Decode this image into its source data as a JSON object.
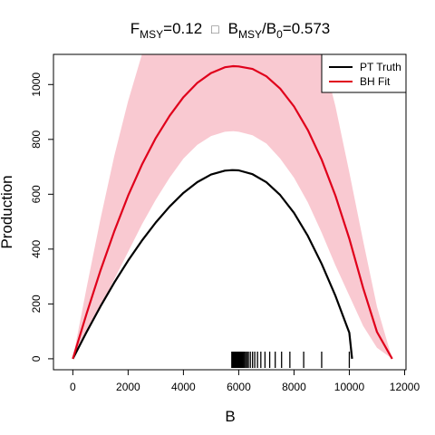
{
  "chart_data": {
    "type": "line",
    "title_parts": {
      "f_main": "F",
      "f_sub": "MSY",
      "f_value": "=0.12",
      "separator": "□",
      "b_main": "B",
      "b_sub": "MSY",
      "slash": "/",
      "b0_main": "B",
      "b0_sub": "0",
      "b_value": "=0.573"
    },
    "xlabel": "B",
    "ylabel": "Production",
    "xlim": [
      -700,
      12050
    ],
    "ylim": [
      -40,
      1110
    ],
    "x_ticks": [
      0,
      2000,
      4000,
      6000,
      8000,
      10000,
      12000
    ],
    "x_tick_labels": [
      "0",
      "2000",
      "4000",
      "6000",
      "8000",
      "10000",
      "12000"
    ],
    "y_ticks": [
      0,
      200,
      400,
      600,
      800,
      1000
    ],
    "y_tick_labels": [
      "0",
      "200",
      "400",
      "600",
      "800",
      "1000"
    ],
    "legend": {
      "position": "top-right",
      "entries": [
        {
          "label": "PT Truth",
          "color": "#000000"
        },
        {
          "label": "BH Fit",
          "color": "#e0001b"
        }
      ]
    },
    "series": [
      {
        "name": "PT Truth",
        "color": "#000000",
        "x": [
          0,
          500,
          1000,
          1500,
          2000,
          2500,
          3000,
          3500,
          4000,
          4500,
          5000,
          5500,
          5780,
          6000,
          6500,
          7000,
          7500,
          8000,
          8500,
          9000,
          9500,
          10000,
          10100
        ],
        "y": [
          0,
          98,
          191,
          278,
          358,
          431,
          497,
          555,
          605,
          644,
          672,
          686,
          688,
          687,
          673,
          644,
          597,
          532,
          448,
          346,
          229,
          95,
          0
        ]
      },
      {
        "name": "BH Fit",
        "color": "#e0001b",
        "x": [
          0,
          500,
          1000,
          1500,
          2000,
          2500,
          3000,
          3500,
          4000,
          4500,
          5000,
          5500,
          5800,
          6000,
          6500,
          7000,
          7500,
          8000,
          8500,
          9000,
          9500,
          10000,
          10500,
          11000,
          11550
        ],
        "y": [
          0,
          165,
          322,
          465,
          595,
          708,
          805,
          886,
          954,
          1006,
          1042,
          1063,
          1067,
          1066,
          1057,
          1030,
          985,
          920,
          834,
          726,
          594,
          438,
          258,
          98,
          0
        ]
      }
    ],
    "confidence_band": {
      "color": "#f9c9d1",
      "x": [
        0,
        500,
        1000,
        1500,
        2000,
        2500,
        3000,
        3500,
        4000,
        4500,
        5000,
        5500,
        5800,
        6000,
        6500,
        7000,
        7500,
        8000,
        8500,
        9000,
        9500,
        10000,
        10500,
        11000,
        11550
      ],
      "lower": [
        0,
        95,
        190,
        290,
        390,
        490,
        580,
        660,
        730,
        780,
        812,
        828,
        830,
        828,
        815,
        785,
        730,
        660,
        570,
        460,
        340,
        230,
        120,
        40,
        0
      ],
      "upper": [
        0,
        260,
        510,
        740,
        940,
        1110,
        1250,
        1380,
        1480,
        1560,
        1620,
        1660,
        1670,
        1660,
        1630,
        1580,
        1500,
        1400,
        1280,
        1120,
        920,
        680,
        430,
        190,
        0
      ]
    },
    "rug_x": [
      5750,
      5780,
      5810,
      5840,
      5870,
      5900,
      5930,
      5960,
      5990,
      6020,
      6050,
      6080,
      6110,
      6140,
      6170,
      6210,
      6250,
      6300,
      6350,
      6420,
      6500,
      6580,
      6680,
      6800,
      6950,
      7120,
      7320,
      7550,
      7850,
      8350,
      9000,
      10000
    ]
  }
}
